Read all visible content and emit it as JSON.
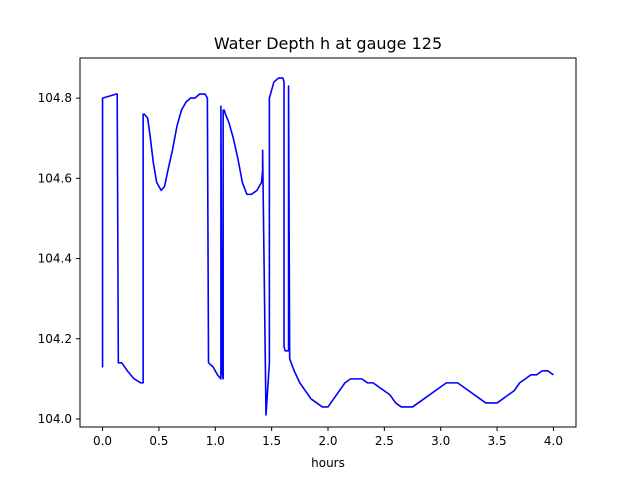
{
  "chart_data": {
    "type": "line",
    "title": "Water Depth h at gauge 125",
    "xlabel": "hours",
    "ylabel": "",
    "xlim": [
      -0.2,
      4.2
    ],
    "ylim": [
      103.98,
      104.9
    ],
    "xticks": [
      0.0,
      0.5,
      1.0,
      1.5,
      2.0,
      2.5,
      3.0,
      3.5,
      4.0
    ],
    "xtick_labels": [
      "0.0",
      "0.5",
      "1.0",
      "1.5",
      "2.0",
      "2.5",
      "3.0",
      "3.5",
      "4.0"
    ],
    "yticks": [
      104.0,
      104.2,
      104.4,
      104.6,
      104.8
    ],
    "ytick_labels": [
      "104.0",
      "104.2",
      "104.4",
      "104.6",
      "104.8"
    ],
    "grid": false,
    "series": [
      {
        "color": "#0000ff",
        "x": [
          0.0,
          0.0,
          0.0,
          0.12,
          0.13,
          0.14,
          0.17,
          0.22,
          0.28,
          0.34,
          0.36,
          0.36,
          0.37,
          0.4,
          0.42,
          0.45,
          0.48,
          0.52,
          0.55,
          0.58,
          0.62,
          0.66,
          0.7,
          0.74,
          0.78,
          0.82,
          0.86,
          0.91,
          0.93,
          0.94,
          0.94,
          0.98,
          1.02,
          1.05,
          1.05,
          1.06,
          1.07,
          1.07,
          1.08,
          1.09,
          1.12,
          1.16,
          1.2,
          1.24,
          1.28,
          1.32,
          1.37,
          1.41,
          1.42,
          1.42,
          1.45,
          1.48,
          1.48,
          1.52,
          1.56,
          1.6,
          1.61,
          1.61,
          1.62,
          1.65,
          1.65,
          1.66,
          1.66,
          1.7,
          1.75,
          1.8,
          1.85,
          1.9,
          1.95,
          2.0,
          2.05,
          2.1,
          2.15,
          2.2,
          2.25,
          2.3,
          2.35,
          2.4,
          2.45,
          2.5,
          2.55,
          2.6,
          2.65,
          2.7,
          2.75,
          2.8,
          2.85,
          2.9,
          2.95,
          3.0,
          3.05,
          3.1,
          3.15,
          3.2,
          3.25,
          3.3,
          3.35,
          3.4,
          3.45,
          3.5,
          3.55,
          3.6,
          3.65,
          3.7,
          3.75,
          3.8,
          3.85,
          3.9,
          3.95,
          4.0
        ],
        "y": [
          104.15,
          104.13,
          104.8,
          104.81,
          104.81,
          104.14,
          104.14,
          104.12,
          104.1,
          104.09,
          104.09,
          104.76,
          104.76,
          104.75,
          104.71,
          104.64,
          104.59,
          104.57,
          104.58,
          104.62,
          104.67,
          104.73,
          104.77,
          104.79,
          104.8,
          104.8,
          104.81,
          104.81,
          104.8,
          104.14,
          104.14,
          104.13,
          104.11,
          104.1,
          104.78,
          104.12,
          104.1,
          104.77,
          104.77,
          104.76,
          104.74,
          104.7,
          104.65,
          104.59,
          104.56,
          104.56,
          104.57,
          104.59,
          104.62,
          104.67,
          104.01,
          104.14,
          104.8,
          104.84,
          104.85,
          104.85,
          104.84,
          104.18,
          104.17,
          104.17,
          104.83,
          104.15,
          104.15,
          104.12,
          104.09,
          104.07,
          104.05,
          104.04,
          104.03,
          104.03,
          104.05,
          104.07,
          104.09,
          104.1,
          104.1,
          104.1,
          104.09,
          104.09,
          104.08,
          104.07,
          104.06,
          104.04,
          104.03,
          104.03,
          104.03,
          104.04,
          104.05,
          104.06,
          104.07,
          104.08,
          104.09,
          104.09,
          104.09,
          104.08,
          104.07,
          104.06,
          104.05,
          104.04,
          104.04,
          104.04,
          104.05,
          104.06,
          104.07,
          104.09,
          104.1,
          104.11,
          104.11,
          104.12,
          104.12,
          104.11
        ]
      }
    ]
  }
}
